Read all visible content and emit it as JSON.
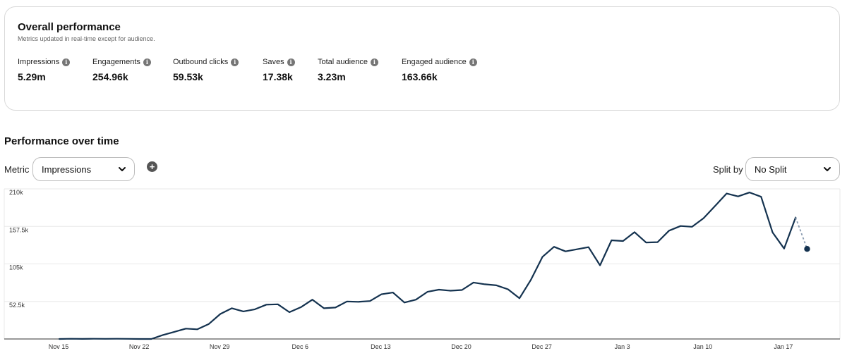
{
  "overview": {
    "title": "Overall performance",
    "subtitle": "Metrics updated in real-time except for audience.",
    "metrics": [
      {
        "label": "Impressions",
        "value": "5.29m"
      },
      {
        "label": "Engagements",
        "value": "254.96k"
      },
      {
        "label": "Outbound clicks",
        "value": "59.53k"
      },
      {
        "label": "Saves",
        "value": "17.38k"
      },
      {
        "label": "Total audience",
        "value": "3.23m"
      },
      {
        "label": "Engaged audience",
        "value": "163.66k"
      }
    ]
  },
  "performance": {
    "title": "Performance over time",
    "metric_label": "Metric",
    "metric_value": "Impressions",
    "split_label": "Split by",
    "split_value": "No Split",
    "add_icon": "plus-circle-icon"
  },
  "colors": {
    "line": "#14324f",
    "grid": "#e8e8e8",
    "projection": "#8a9bb0"
  },
  "chart_data": {
    "type": "line",
    "title": "Performance over time",
    "series_name": "Impressions",
    "xlabel": "",
    "ylabel": "",
    "ylim": [
      0,
      210000
    ],
    "y_ticks": [
      52500,
      105000,
      157500,
      210000
    ],
    "y_tick_labels": [
      "52.5k",
      "105k",
      "157.5k",
      "210k"
    ],
    "x_tick_labels": [
      "Nov 15",
      "Nov 22",
      "Nov 29",
      "Dec 6",
      "Dec 13",
      "Dec 20",
      "Dec 27",
      "Jan 3",
      "Jan 10",
      "Jan 17"
    ],
    "x_tick_day_index": [
      0,
      7,
      14,
      21,
      28,
      35,
      42,
      49,
      56,
      63
    ],
    "start_date": "Nov 15",
    "values": [
      0,
      300,
      100,
      300,
      200,
      300,
      200,
      0,
      0,
      5500,
      10000,
      14500,
      13500,
      21000,
      35000,
      43000,
      38500,
      41500,
      48000,
      48500,
      37500,
      44500,
      55000,
      43000,
      44000,
      52500,
      52000,
      53000,
      62500,
      65000,
      51000,
      55000,
      66000,
      69000,
      67500,
      68500,
      79000,
      76500,
      75000,
      69500,
      57000,
      83000,
      115000,
      129000,
      122500,
      125500,
      128500,
      103000,
      138000,
      137000,
      149500,
      135000,
      135500,
      151500,
      158000,
      157000,
      169000,
      186000,
      203500,
      199500,
      205000,
      199000,
      149000,
      126500,
      170000,
      126000
    ],
    "projected_index": 65,
    "projected": true
  }
}
